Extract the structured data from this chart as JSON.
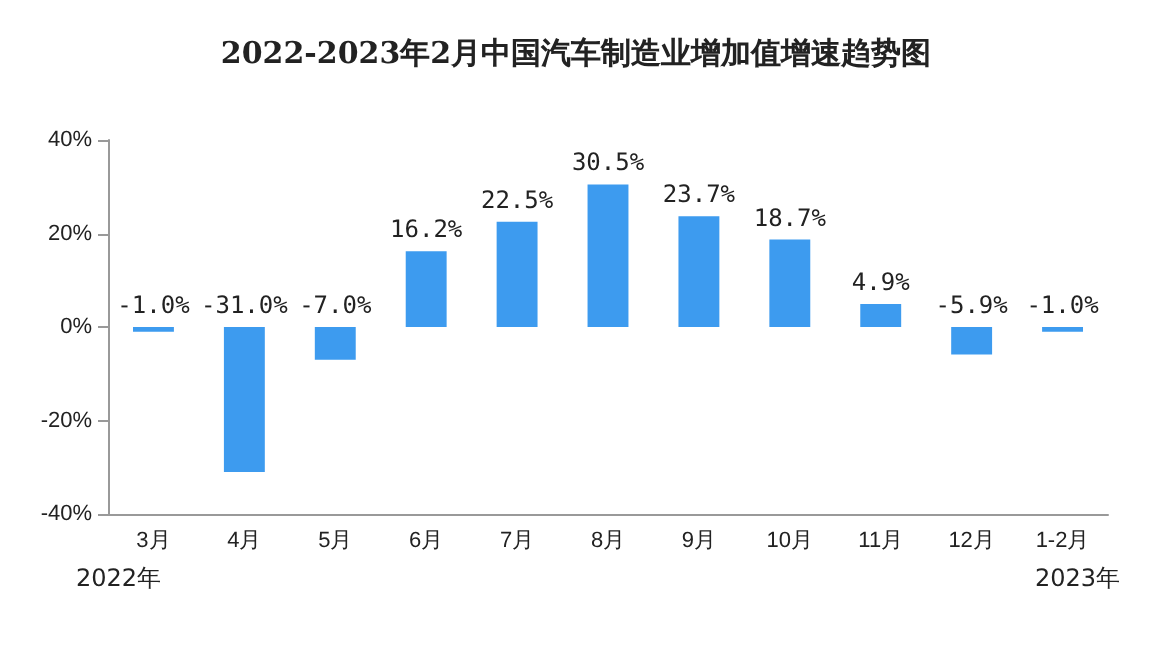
{
  "chart_data": {
    "type": "bar",
    "title": "2022-2023年2月中国汽车制造业增加值增速趋势图",
    "categories": [
      "3月",
      "4月",
      "5月",
      "6月",
      "7月",
      "8月",
      "9月",
      "10月",
      "11月",
      "12月",
      "1-2月"
    ],
    "values": [
      -1.0,
      -31.0,
      -7.0,
      16.2,
      22.5,
      30.5,
      23.7,
      18.7,
      4.9,
      -5.9,
      -1.0
    ],
    "value_labels": [
      "-1.0%",
      "-31.0%",
      "-7.0%",
      "16.2%",
      "22.5%",
      "30.5%",
      "23.7%",
      "18.7%",
      "4.9%",
      "-5.9%",
      "-1.0%"
    ],
    "color": "#3d9bef",
    "ylim": [
      -40,
      40
    ],
    "yticks": [
      {
        "value": -40,
        "label": "-40%"
      },
      {
        "value": -20,
        "label": "-20%"
      },
      {
        "value": 0,
        "label": "0%"
      },
      {
        "value": 20,
        "label": "20%"
      },
      {
        "value": 40,
        "label": "40%"
      }
    ],
    "grid": false,
    "annotations": [
      "2022年",
      "2023年"
    ]
  }
}
